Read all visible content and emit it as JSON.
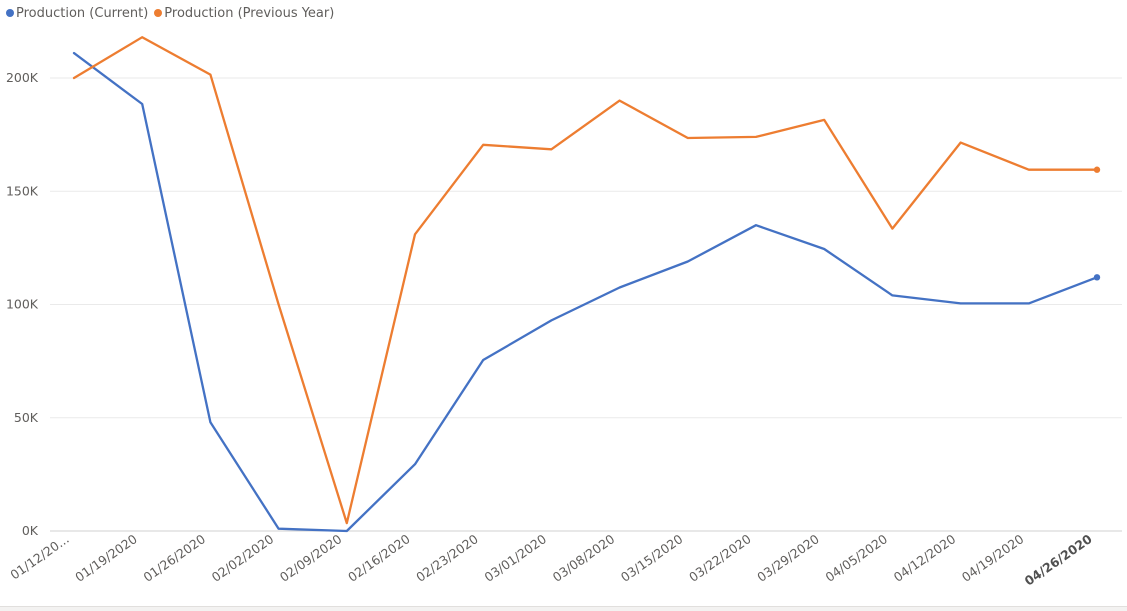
{
  "legend": {
    "items": [
      {
        "label": "Production (Current)",
        "color": "#4472c4"
      },
      {
        "label": "Production (Previous Year)",
        "color": "#ed7d31"
      }
    ]
  },
  "chart_data": {
    "type": "line",
    "title": "",
    "xlabel": "",
    "ylabel": "",
    "categories": [
      "01/12/20...",
      "01/19/2020",
      "01/26/2020",
      "02/02/2020",
      "02/09/2020",
      "02/16/2020",
      "02/23/2020",
      "03/01/2020",
      "03/08/2020",
      "03/15/2020",
      "03/22/2020",
      "03/29/2020",
      "04/05/2020",
      "04/12/2020",
      "04/19/2020",
      "04/26/2020"
    ],
    "highlighted_category": "04/26/2020",
    "y_ticks": [
      0,
      50000,
      100000,
      150000,
      200000
    ],
    "y_tick_labels": [
      "0K",
      "50K",
      "100K",
      "150K",
      "200K"
    ],
    "ylim": [
      0,
      220000
    ],
    "grid": true,
    "legend_position": "top-left",
    "series": [
      {
        "name": "Production (Current)",
        "color": "#4472c4",
        "values": [
          211000,
          188500,
          48000,
          1000,
          0,
          29500,
          75500,
          93000,
          107500,
          119000,
          135000,
          124500,
          104000,
          100500,
          100500,
          112000
        ]
      },
      {
        "name": "Production (Previous Year)",
        "color": "#ed7d31",
        "values": [
          200000,
          218000,
          201500,
          100000,
          3500,
          131000,
          170500,
          168500,
          190000,
          173500,
          174000,
          181500,
          133500,
          171500,
          159500,
          159500
        ]
      }
    ]
  }
}
